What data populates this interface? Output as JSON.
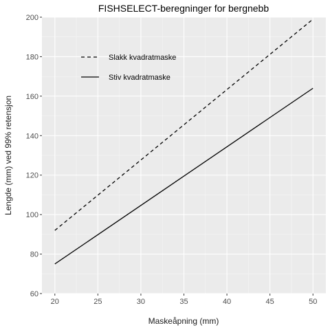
{
  "chart_data": {
    "type": "line",
    "title": "FISHSELECT-beregninger for bergnebb",
    "xlabel": "Maskeåpning (mm)",
    "ylabel": "Lengde (mm) ved 99% retensjon",
    "xlim": [
      18.5,
      51.5
    ],
    "ylim": [
      60,
      200
    ],
    "x_ticks": [
      20,
      25,
      30,
      35,
      40,
      45,
      50
    ],
    "y_ticks": [
      60,
      80,
      100,
      120,
      140,
      160,
      180,
      200
    ],
    "grid": true,
    "legend_position": "top-left",
    "x": [
      20,
      50
    ],
    "series": [
      {
        "name": "Slakk kvadratmaske",
        "values": [
          92,
          199
        ],
        "linestyle": "dashed",
        "color": "#000000"
      },
      {
        "name": "Stiv kvadratmaske",
        "values": [
          75,
          164
        ],
        "linestyle": "solid",
        "color": "#000000"
      }
    ],
    "colors": {
      "panel": "#ebebeb",
      "grid_major": "#ffffff",
      "grid_minor": "#f5f5f5"
    }
  }
}
